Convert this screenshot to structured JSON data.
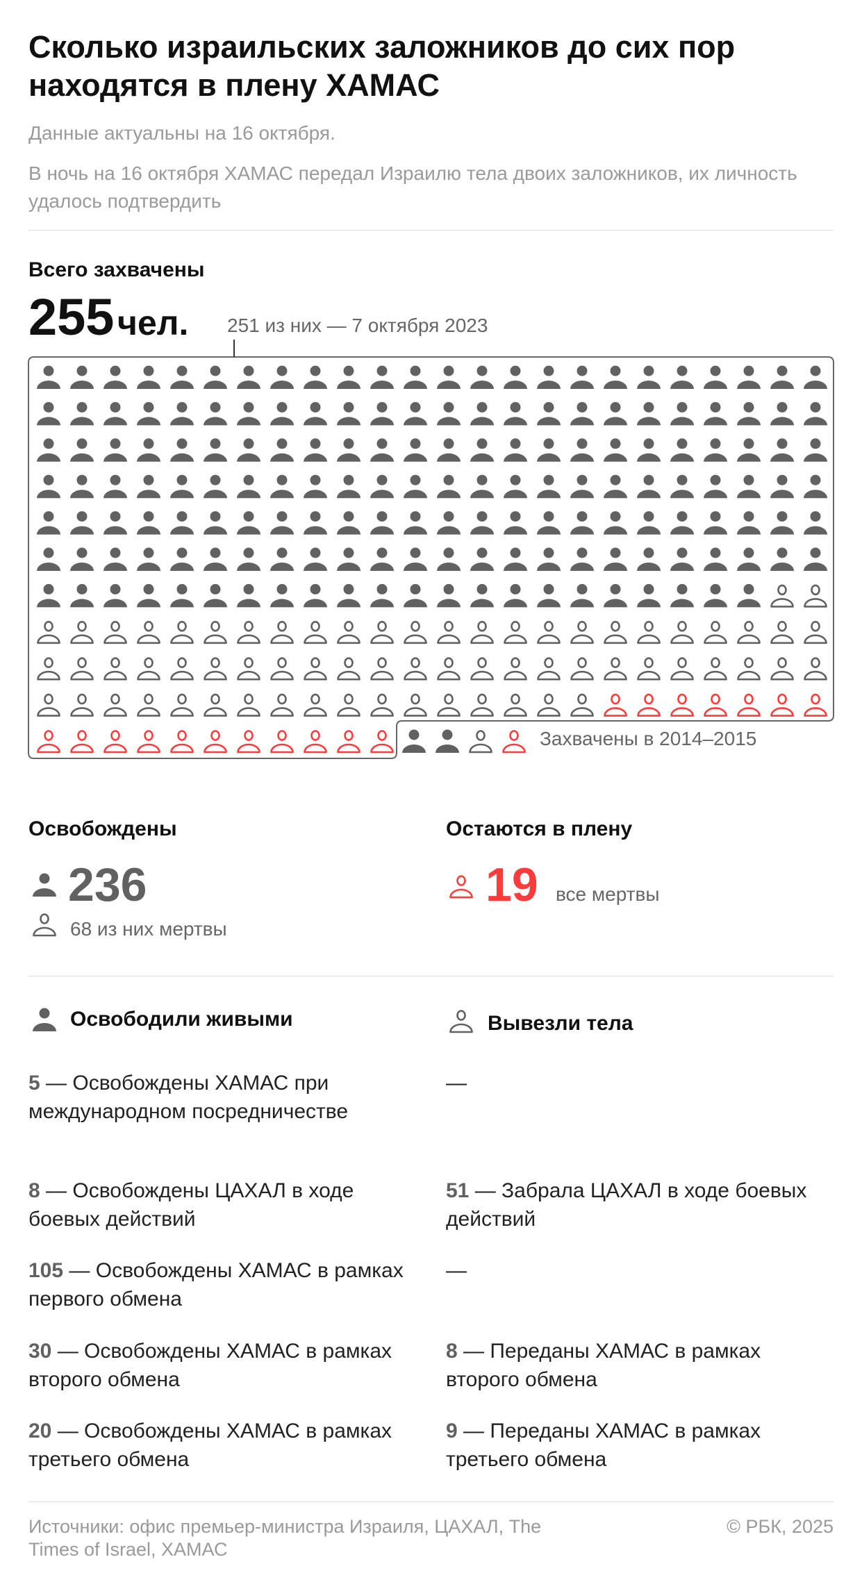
{
  "title": "Сколько израильских заложников до сих пор находятся в плену ХАМАС",
  "date_note": "Данные актуальны на 16 октября.",
  "description": "В ночь на 16 октября ХАМАС передал Израилю тела двоих заложников, их личность удалось подтвердить",
  "total": {
    "label": "Всего захвачены",
    "value": "255",
    "unit": "чел.",
    "note": "251 из них — 7 октября 2023"
  },
  "colors": {
    "alive": "#616161",
    "dead": "#616161",
    "remaining": "#ff3b3b"
  },
  "chart_data": {
    "type": "pictogram",
    "main_grid": {
      "label": "7 октября 2023",
      "total": 251,
      "columns": 24,
      "alive_released": 166,
      "dead_released": 67,
      "remaining": 18
    },
    "grid_2014_2015": {
      "label": "Захвачены в 2014–2015",
      "icons": [
        "alive",
        "alive",
        "dead",
        "remaining"
      ]
    }
  },
  "released": {
    "label": "Освобождены",
    "value": "236",
    "dead_note": "68 из них мертвы"
  },
  "remaining": {
    "label": "Остаются в плену",
    "value": "19",
    "note": "все мертвы"
  },
  "alive_column": {
    "title": "Освободили живыми",
    "items": [
      {
        "num": "5",
        "text": " — Освобождены ХАМАС при международном посредничестве"
      },
      {
        "num": "8",
        "text": " — Освобождены ЦАХАЛ в ходе боевых действий"
      },
      {
        "num": "105",
        "text": " — Освобождены ХАМАС в рамках первого обмена"
      },
      {
        "num": "30",
        "text": " — Освобождены ХАМАС в рамках второго обмена"
      },
      {
        "num": "20",
        "text": " — Освобождены ХАМАС в рамках третьего обмена"
      }
    ]
  },
  "bodies_column": {
    "title": "Вывезли тела",
    "items": [
      {
        "num": "",
        "text": "—"
      },
      {
        "num": "51",
        "text": " — Забрала ЦАХАЛ в ходе боевых действий"
      },
      {
        "num": "",
        "text": " —"
      },
      {
        "num": "8",
        "text": " — Переданы ХАМАС в рамках второго обмена"
      },
      {
        "num": "9",
        "text": " — Переданы ХАМАС в рамках третьего обмена"
      }
    ]
  },
  "footer": {
    "sources": "Источники: офис премьер-министра Израиля, ЦАХАЛ, The Times of Israel, ХАМАС",
    "copyright": "© РБК, 2025"
  }
}
